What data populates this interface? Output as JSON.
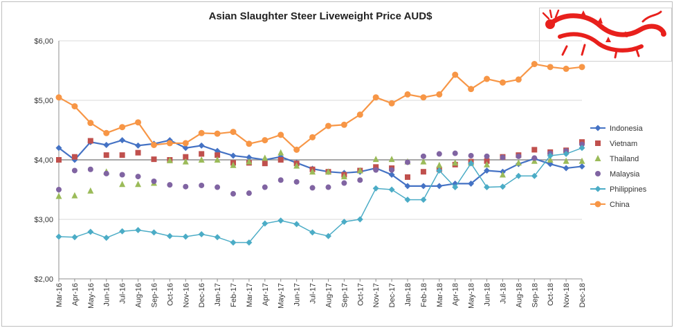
{
  "chart_data": {
    "type": "line",
    "title": "Asian Slaughter Steer Liveweight Price AUD$",
    "xlabel": "",
    "ylabel": "",
    "ylim": [
      2,
      6
    ],
    "yticks": [
      "$2,00",
      "$3,00",
      "$4,00",
      "$5,00",
      "$6,00"
    ],
    "grid": "horizontal",
    "legend_position": "right",
    "categories": [
      "Mar-16",
      "Apr-16",
      "May-16",
      "Jun-16",
      "Jul-16",
      "Aug-16",
      "Sep-16",
      "Oct-16",
      "Nov-16",
      "Dec-16",
      "Jan-17",
      "Feb-17",
      "Mar-17",
      "Apr-17",
      "May-17",
      "Jun-17",
      "Jul-17",
      "Aug-17",
      "Sep-17",
      "Oct-17",
      "Nov-17",
      "Dec-17",
      "Jan-18",
      "Feb-18",
      "Mar-18",
      "Apr-18",
      "May-18",
      "Jun-18",
      "Jul-18",
      "Aug-18",
      "Sep-18",
      "Oct-18",
      "Nov-18",
      "Dec-18"
    ],
    "series": [
      {
        "name": "Indonesia",
        "color": "#4472c4",
        "style": "line-diamond",
        "values": [
          4.2,
          4.0,
          4.3,
          4.25,
          4.33,
          4.24,
          4.27,
          4.33,
          4.2,
          4.24,
          4.15,
          4.07,
          4.04,
          4.0,
          4.05,
          3.95,
          3.85,
          3.8,
          3.78,
          3.8,
          3.86,
          3.75,
          3.56,
          3.56,
          3.56,
          3.6,
          3.6,
          3.82,
          3.8,
          3.93,
          4.02,
          3.93,
          3.86,
          3.89
        ]
      },
      {
        "name": "Vietnam",
        "color": "#c0504d",
        "style": "square",
        "values": [
          4.0,
          4.05,
          4.32,
          4.08,
          4.08,
          4.12,
          4.01,
          4.0,
          4.05,
          4.1,
          4.08,
          3.95,
          3.95,
          3.94,
          4.0,
          3.94,
          3.84,
          3.8,
          3.75,
          3.82,
          3.88,
          3.86,
          3.71,
          3.8,
          3.84,
          3.92,
          3.97,
          3.98,
          4.05,
          4.08,
          4.17,
          4.13,
          4.16,
          4.3
        ]
      },
      {
        "name": "Thailand",
        "color": "#9bbb59",
        "style": "triangle",
        "values": [
          3.39,
          3.4,
          3.48,
          3.8,
          3.59,
          3.59,
          3.61,
          3.99,
          3.97,
          4.0,
          4.0,
          3.91,
          3.97,
          4.03,
          4.12,
          3.9,
          3.8,
          3.8,
          3.72,
          3.82,
          4.01,
          4.01,
          3.97,
          3.97,
          3.91,
          3.95,
          3.95,
          3.92,
          3.75,
          3.95,
          3.98,
          4.0,
          3.98,
          3.98
        ]
      },
      {
        "name": "Malaysia",
        "color": "#8064a2",
        "style": "circle",
        "values": [
          3.5,
          3.82,
          3.84,
          3.77,
          3.75,
          3.72,
          3.64,
          3.58,
          3.55,
          3.57,
          3.54,
          3.43,
          3.44,
          3.54,
          3.66,
          3.63,
          3.53,
          3.54,
          3.61,
          3.66,
          3.83,
          3.83,
          3.96,
          4.06,
          4.1,
          4.11,
          4.07,
          4.06,
          4.04,
          4.06,
          4.03,
          4.11,
          4.15,
          4.26
        ]
      },
      {
        "name": "Philippines",
        "color": "#4bacc6",
        "style": "line-diamond",
        "values": [
          2.71,
          2.7,
          2.79,
          2.69,
          2.8,
          2.82,
          2.78,
          2.72,
          2.71,
          2.75,
          2.7,
          2.61,
          2.61,
          2.93,
          2.98,
          2.92,
          2.78,
          2.72,
          2.96,
          3.0,
          3.52,
          3.5,
          3.33,
          3.33,
          3.82,
          3.54,
          3.94,
          3.54,
          3.55,
          3.73,
          3.73,
          4.07,
          4.1,
          4.2
        ]
      },
      {
        "name": "China",
        "color": "#f79646",
        "style": "line-circle",
        "values": [
          5.05,
          4.9,
          4.62,
          4.45,
          4.55,
          4.63,
          4.25,
          4.28,
          4.28,
          4.45,
          4.44,
          4.47,
          4.27,
          4.33,
          4.42,
          4.17,
          4.38,
          4.57,
          4.59,
          4.76,
          5.05,
          4.95,
          5.1,
          5.05,
          5.1,
          5.43,
          5.19,
          5.36,
          5.3,
          5.35,
          5.61,
          5.56,
          5.53,
          5.56
        ]
      }
    ]
  }
}
